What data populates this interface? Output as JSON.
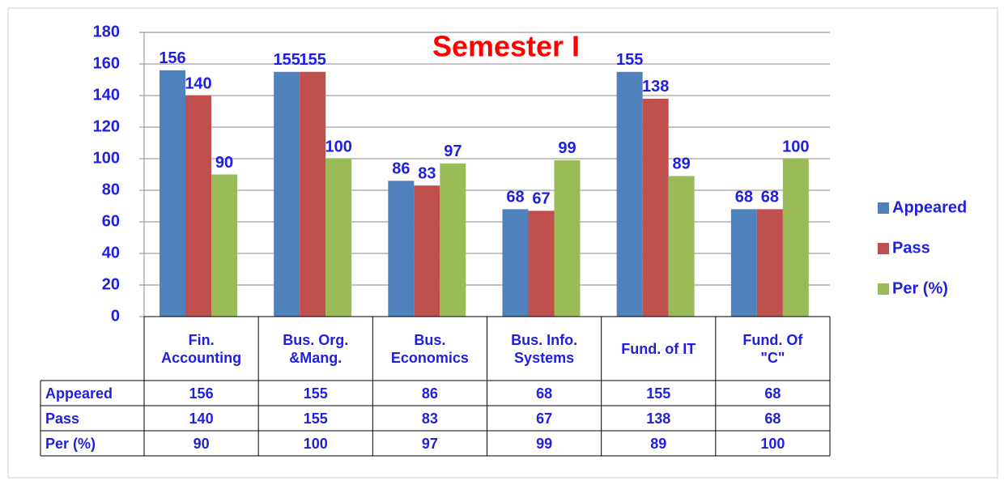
{
  "chart_data": {
    "type": "bar",
    "title": "Semester I",
    "categories": [
      "Fin.\nAccounting",
      "Bus. Org.\n&Mang.",
      "Bus.\nEconomics",
      "Bus. Info.\nSystems",
      "Fund. of IT",
      "Fund. Of\n\"C\""
    ],
    "series": [
      {
        "name": "Appeared",
        "color": "#4f81bd",
        "values": [
          156,
          155,
          86,
          68,
          155,
          68
        ]
      },
      {
        "name": "Pass",
        "color": "#c0504d",
        "values": [
          140,
          155,
          83,
          67,
          138,
          68
        ]
      },
      {
        "name": "Per (%)",
        "color": "#9bbb59",
        "values": [
          90,
          100,
          97,
          99,
          89,
          100
        ]
      }
    ],
    "ylim": [
      0,
      180
    ],
    "yticks": [
      0,
      20,
      40,
      60,
      80,
      100,
      120,
      140,
      160,
      180
    ],
    "grid": true,
    "legend": "right"
  }
}
